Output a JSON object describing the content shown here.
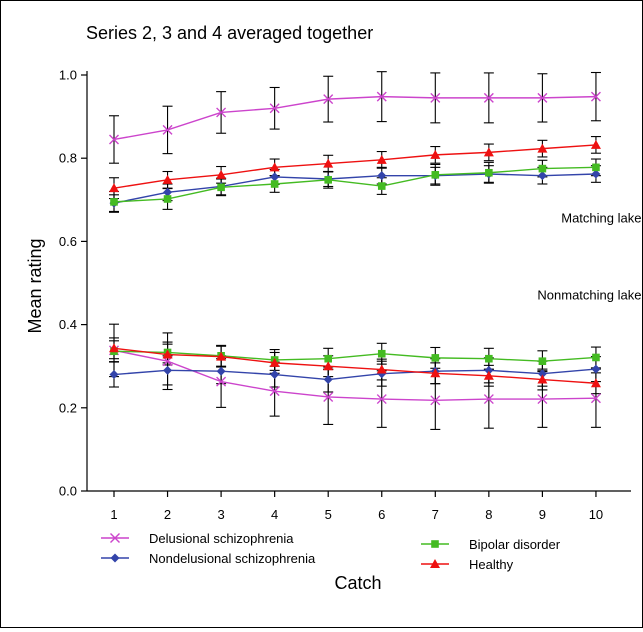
{
  "chart_data": {
    "type": "line",
    "title": "Series 2, 3 and 4 averaged together",
    "xlabel": "Catch",
    "ylabel": "Mean rating",
    "x": [
      1,
      2,
      3,
      4,
      5,
      6,
      7,
      8,
      9,
      10
    ],
    "xticks": [
      "1",
      "2",
      "3",
      "4",
      "5",
      "6",
      "7",
      "8",
      "9",
      "10"
    ],
    "yticks": [
      "0.0",
      "0.2",
      "0.4",
      "0.6",
      "0.8",
      "1.0"
    ],
    "ylim": [
      0,
      1.0
    ],
    "grid": false,
    "legend_position": "bottom",
    "annotations": [
      {
        "text": "Matching lake",
        "x": 10.85,
        "y": 0.645
      },
      {
        "text": "Nonmatching lake",
        "x": 10.85,
        "y": 0.46
      }
    ],
    "series": [
      {
        "name": "Delusional schizophrenia",
        "color": "#cc44cc",
        "marker": "x",
        "groups": [
          {
            "label": "Matching lake",
            "values": [
              0.845,
              0.868,
              0.91,
              0.92,
              0.942,
              0.948,
              0.945,
              0.945,
              0.945,
              0.948
            ],
            "errors": [
              0.057,
              0.057,
              0.05,
              0.05,
              0.055,
              0.06,
              0.06,
              0.06,
              0.058,
              0.058
            ]
          },
          {
            "label": "Nonmatching lake",
            "values": [
              0.338,
              0.312,
              0.263,
              0.24,
              0.226,
              0.221,
              0.218,
              0.221,
              0.221,
              0.223
            ],
            "errors": [
              0.063,
              0.068,
              0.062,
              0.06,
              0.066,
              0.068,
              0.07,
              0.07,
              0.068,
              0.07
            ]
          }
        ]
      },
      {
        "name": "Nondelusional schizophrenia",
        "color": "#3344aa",
        "marker": "diamond",
        "groups": [
          {
            "label": "Matching lake",
            "values": [
              0.692,
              0.718,
              0.732,
              0.755,
              0.75,
              0.758,
              0.758,
              0.762,
              0.758,
              0.762
            ],
            "errors": [
              0.02,
              0.02,
              0.02,
              0.018,
              0.018,
              0.02,
              0.02,
              0.02,
              0.02,
              0.02
            ]
          },
          {
            "label": "Nonmatching lake",
            "values": [
              0.28,
              0.29,
              0.288,
              0.28,
              0.268,
              0.282,
              0.288,
              0.29,
              0.282,
              0.293
            ],
            "errors": [
              0.03,
              0.035,
              0.03,
              0.03,
              0.03,
              0.03,
              0.03,
              0.03,
              0.03,
              0.03
            ]
          }
        ]
      },
      {
        "name": "Bipolar disorder",
        "color": "#44bb22",
        "marker": "square",
        "groups": [
          {
            "label": "Matching lake",
            "values": [
              0.695,
              0.702,
              0.73,
              0.738,
              0.748,
              0.733,
              0.76,
              0.765,
              0.775,
              0.778
            ],
            "errors": [
              0.025,
              0.025,
              0.02,
              0.02,
              0.02,
              0.02,
              0.025,
              0.025,
              0.02,
              0.02
            ]
          },
          {
            "label": "Nonmatching lake",
            "values": [
              0.336,
              0.333,
              0.325,
              0.315,
              0.318,
              0.33,
              0.32,
              0.318,
              0.312,
              0.321
            ],
            "errors": [
              0.025,
              0.025,
              0.025,
              0.025,
              0.025,
              0.025,
              0.025,
              0.025,
              0.025,
              0.025
            ]
          }
        ]
      },
      {
        "name": "Healthy",
        "color": "#ee1111",
        "marker": "triangle",
        "groups": [
          {
            "label": "Matching lake",
            "values": [
              0.728,
              0.748,
              0.76,
              0.778,
              0.787,
              0.796,
              0.808,
              0.814,
              0.823,
              0.832
            ],
            "errors": [
              0.025,
              0.02,
              0.02,
              0.02,
              0.02,
              0.02,
              0.02,
              0.02,
              0.02,
              0.02
            ]
          },
          {
            "label": "Nonmatching lake",
            "values": [
              0.343,
              0.328,
              0.323,
              0.308,
              0.3,
              0.292,
              0.283,
              0.277,
              0.268,
              0.259
            ],
            "errors": [
              0.025,
              0.025,
              0.025,
              0.025,
              0.025,
              0.025,
              0.025,
              0.025,
              0.025,
              0.025
            ]
          }
        ]
      }
    ],
    "legend": [
      {
        "name": "Delusional schizophrenia",
        "series": 0
      },
      {
        "name": "Nondelusional schizophrenia",
        "series": 1
      },
      {
        "name": "Bipolar disorder",
        "series": 2
      },
      {
        "name": "Healthy",
        "series": 3
      }
    ]
  }
}
